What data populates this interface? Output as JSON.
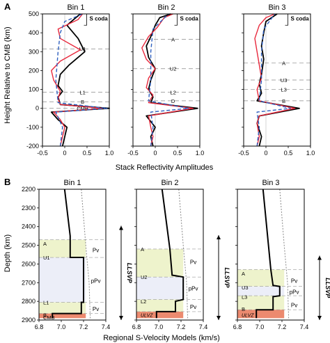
{
  "figure": {
    "panel_a": {
      "letter": "A",
      "ylabel": "Height Relative to CMB (km)",
      "xlabel": "Stack Reflectivity Amplitudes",
      "y_ticks": [
        "500",
        "400",
        "300",
        "200",
        "100",
        "0",
        "-100",
        "-200"
      ],
      "x_ticks": [
        "-0.5",
        "0",
        "0.5",
        "1.0"
      ],
      "bins": [
        {
          "title": "Bin 1",
          "coda": "S coda",
          "labels": [
            {
              "text": "U1",
              "y": 315
            },
            {
              "text": "L1",
              "y": 85
            },
            {
              "text": "B",
              "y": 35
            },
            {
              "text": "CMB",
              "y": 0
            }
          ]
        },
        {
          "title": "Bin 2",
          "coda": "S coda",
          "labels": [
            {
              "text": "A",
              "y": 365
            },
            {
              "text": "U2",
              "y": 210
            },
            {
              "text": "L2",
              "y": 85
            },
            {
              "text": "D",
              "y": 40
            }
          ]
        },
        {
          "title": "Bin 3",
          "coda": "S coda",
          "labels": [
            {
              "text": "A",
              "y": 240
            },
            {
              "text": "U3",
              "y": 150
            },
            {
              "text": "L3",
              "y": 100
            },
            {
              "text": "B",
              "y": 40
            }
          ]
        }
      ]
    },
    "panel_b": {
      "letter": "B",
      "ylabel": "Depth (km)",
      "xlabel": "Regional S-Velocity Models (km/s)",
      "y_ticks": [
        "2200",
        "2300",
        "2400",
        "2500",
        "2600",
        "2700",
        "2800",
        "2900"
      ],
      "x_ticks": [
        "6.8",
        "7.0",
        "7.2",
        "7.4"
      ],
      "llsvp": "LLSVP",
      "bins": [
        {
          "title": "Bin 1",
          "labels": [
            {
              "text": "A",
              "depth": 2490
            },
            {
              "text": "U1",
              "depth": 2565
            },
            {
              "text": "L1",
              "depth": 2805
            },
            {
              "text": "CMB",
              "depth": 2885
            },
            {
              "text": "B",
              "depth": 2873
            }
          ],
          "phases": [
            {
              "text": "Pv",
              "depth": 2525
            },
            {
              "text": "pPv",
              "depth": 2690
            },
            {
              "text": "Pv",
              "depth": 2840
            }
          ]
        },
        {
          "title": "Bin 2",
          "labels": [
            {
              "text": "A",
              "depth": 2520
            },
            {
              "text": "U2",
              "depth": 2670
            },
            {
              "text": "L2",
              "depth": 2800
            },
            {
              "text": "ULVZ",
              "depth": 2873
            }
          ],
          "phases": [
            {
              "text": "Pv",
              "depth": 2590
            },
            {
              "text": "pPv",
              "depth": 2730
            },
            {
              "text": "Pv",
              "depth": 2830
            }
          ]
        },
        {
          "title": "Bin 3",
          "labels": [
            {
              "text": "A",
              "depth": 2650
            },
            {
              "text": "U3",
              "depth": 2725
            },
            {
              "text": "L3",
              "depth": 2775
            },
            {
              "text": "B",
              "depth": 2840
            },
            {
              "text": "ULVZ",
              "depth": 2873
            }
          ],
          "phases": [
            {
              "text": "Pv",
              "depth": 2690
            },
            {
              "text": "pPv",
              "depth": 2750
            },
            {
              "text": "Pv",
              "depth": 2820
            }
          ]
        }
      ]
    }
  },
  "chart_data": [
    {
      "type": "line",
      "panel": "A",
      "title": "Bin 1",
      "xlabel": "Stack Reflectivity Amplitudes",
      "ylabel": "Height Relative to CMB (km)",
      "xlim": [
        -0.5,
        1.0
      ],
      "ylim": [
        -200,
        500
      ],
      "grid": false,
      "series": [
        {
          "color": "#000000",
          "dash": "solid",
          "points": [
            [
              -0.05,
              -200
            ],
            [
              0.0,
              -150
            ],
            [
              0.05,
              -100
            ],
            [
              -0.15,
              -60
            ],
            [
              -0.3,
              -20
            ],
            [
              1.0,
              0
            ],
            [
              -0.1,
              20
            ],
            [
              -0.15,
              60
            ],
            [
              -0.05,
              90
            ],
            [
              -0.15,
              120
            ],
            [
              -0.1,
              180
            ],
            [
              0.1,
              230
            ],
            [
              0.45,
              300
            ],
            [
              0.3,
              370
            ],
            [
              0.05,
              440
            ],
            [
              0.2,
              470
            ],
            [
              0.35,
              500
            ]
          ]
        },
        {
          "color": "#e8283c",
          "dash": "solid",
          "points": [
            [
              -0.1,
              -200
            ],
            [
              -0.05,
              -150
            ],
            [
              0.0,
              -100
            ],
            [
              -0.1,
              -60
            ],
            [
              -0.25,
              -20
            ],
            [
              0.85,
              0
            ],
            [
              -0.1,
              20
            ],
            [
              -0.15,
              50
            ],
            [
              -0.1,
              90
            ],
            [
              -0.25,
              150
            ],
            [
              -0.3,
              200
            ],
            [
              -0.1,
              250
            ],
            [
              0.35,
              310
            ],
            [
              -0.1,
              370
            ],
            [
              -0.15,
              420
            ],
            [
              0.3,
              470
            ],
            [
              0.4,
              500
            ]
          ]
        },
        {
          "color": "#2e5fbf",
          "dash": "dashed",
          "points": [
            [
              -0.1,
              -200
            ],
            [
              -0.05,
              -100
            ],
            [
              -0.2,
              -20
            ],
            [
              0.95,
              0
            ],
            [
              -0.15,
              30
            ],
            [
              -0.2,
              150
            ],
            [
              -0.15,
              300
            ],
            [
              -0.1,
              400
            ],
            [
              0.0,
              460
            ],
            [
              0.4,
              500
            ]
          ]
        }
      ]
    },
    {
      "type": "line",
      "panel": "A",
      "title": "Bin 2",
      "xlim": [
        -0.5,
        1.0
      ],
      "ylim": [
        -200,
        500
      ],
      "grid": false,
      "series": [
        {
          "color": "#000000",
          "dash": "solid",
          "points": [
            [
              -0.05,
              -200
            ],
            [
              -0.1,
              -150
            ],
            [
              0.0,
              -100
            ],
            [
              -0.2,
              -40
            ],
            [
              0.95,
              0
            ],
            [
              -0.1,
              30
            ],
            [
              -0.05,
              60
            ],
            [
              -0.15,
              100
            ],
            [
              -0.1,
              150
            ],
            [
              0.0,
              210
            ],
            [
              -0.15,
              270
            ],
            [
              -0.2,
              330
            ],
            [
              -0.1,
              380
            ],
            [
              0.0,
              440
            ],
            [
              0.1,
              480
            ],
            [
              0.35,
              500
            ]
          ]
        },
        {
          "color": "#e8283c",
          "dash": "solid",
          "points": [
            [
              -0.1,
              -200
            ],
            [
              -0.05,
              -150
            ],
            [
              -0.1,
              -100
            ],
            [
              -0.15,
              -40
            ],
            [
              0.85,
              0
            ],
            [
              -0.15,
              30
            ],
            [
              -0.05,
              70
            ],
            [
              -0.2,
              110
            ],
            [
              -0.15,
              160
            ],
            [
              0.0,
              210
            ],
            [
              -0.2,
              260
            ],
            [
              -0.3,
              320
            ],
            [
              -0.15,
              380
            ],
            [
              0.05,
              430
            ],
            [
              0.2,
              480
            ],
            [
              0.4,
              500
            ]
          ]
        },
        {
          "color": "#2e5fbf",
          "dash": "dashed",
          "points": [
            [
              -0.1,
              -200
            ],
            [
              -0.05,
              -100
            ],
            [
              -0.1,
              -20
            ],
            [
              0.75,
              0
            ],
            [
              -0.15,
              40
            ],
            [
              -0.1,
              150
            ],
            [
              -0.1,
              300
            ],
            [
              -0.05,
              420
            ],
            [
              0.3,
              500
            ]
          ]
        }
      ]
    },
    {
      "type": "line",
      "panel": "A",
      "title": "Bin 3",
      "xlim": [
        -0.5,
        1.0
      ],
      "ylim": [
        -200,
        500
      ],
      "grid": false,
      "series": [
        {
          "color": "#000000",
          "dash": "solid",
          "points": [
            [
              -0.15,
              -200
            ],
            [
              -0.1,
              -150
            ],
            [
              -0.2,
              -80
            ],
            [
              -0.15,
              -40
            ],
            [
              0.75,
              0
            ],
            [
              -0.2,
              40
            ],
            [
              -0.1,
              80
            ],
            [
              -0.15,
              130
            ],
            [
              -0.1,
              180
            ],
            [
              -0.05,
              260
            ],
            [
              -0.1,
              330
            ],
            [
              -0.05,
              400
            ],
            [
              0.0,
              460
            ],
            [
              0.25,
              500
            ]
          ]
        },
        {
          "color": "#e8283c",
          "dash": "solid",
          "points": [
            [
              -0.2,
              -200
            ],
            [
              -0.15,
              -150
            ],
            [
              -0.2,
              -80
            ],
            [
              -0.15,
              -40
            ],
            [
              0.65,
              0
            ],
            [
              -0.15,
              40
            ],
            [
              -0.2,
              100
            ],
            [
              -0.1,
              160
            ],
            [
              -0.15,
              230
            ],
            [
              -0.2,
              300
            ],
            [
              -0.25,
              370
            ],
            [
              -0.15,
              440
            ],
            [
              0.0,
              480
            ],
            [
              0.2,
              500
            ]
          ]
        },
        {
          "color": "#2e5fbf",
          "dash": "dashed",
          "points": [
            [
              -0.2,
              -200
            ],
            [
              -0.15,
              -100
            ],
            [
              -0.2,
              -20
            ],
            [
              0.55,
              0
            ],
            [
              -0.15,
              40
            ],
            [
              -0.1,
              150
            ],
            [
              -0.1,
              300
            ],
            [
              -0.05,
              420
            ],
            [
              0.2,
              500
            ]
          ]
        }
      ]
    },
    {
      "type": "line",
      "panel": "B",
      "title": "Bin 1",
      "xlabel": "Regional S-Velocity Models (km/s)",
      "ylabel": "Depth (km)",
      "xlim": [
        6.8,
        7.4
      ],
      "ylim": [
        2200,
        2900
      ],
      "grid": false,
      "model": [
        [
          7.03,
          2200
        ],
        [
          7.08,
          2450
        ],
        [
          7.08,
          2565
        ],
        [
          7.2,
          2565
        ],
        [
          7.2,
          2805
        ],
        [
          7.18,
          2805
        ],
        [
          7.18,
          2865
        ],
        [
          6.92,
          2865
        ],
        [
          6.92,
          2890
        ]
      ],
      "reference": [
        [
          7.18,
          2200
        ],
        [
          7.22,
          2500
        ],
        [
          7.25,
          2700
        ],
        [
          7.26,
          2890
        ]
      ],
      "layers": [
        {
          "from": 2470,
          "to": 2565,
          "color": "#eef3cc"
        },
        {
          "from": 2565,
          "to": 2805,
          "color": "#eceef8"
        },
        {
          "from": 2805,
          "to": 2865,
          "color": "#eef3cc"
        },
        {
          "from": 2865,
          "to": 2890,
          "color": "#ec8a6f"
        }
      ]
    },
    {
      "type": "line",
      "panel": "B",
      "title": "Bin 2",
      "xlim": [
        6.8,
        7.4
      ],
      "ylim": [
        2200,
        2900
      ],
      "grid": false,
      "model": [
        [
          7.03,
          2200
        ],
        [
          7.1,
          2520
        ],
        [
          7.12,
          2660
        ],
        [
          7.22,
          2670
        ],
        [
          7.22,
          2790
        ],
        [
          7.15,
          2800
        ],
        [
          7.15,
          2855
        ],
        [
          6.98,
          2855
        ],
        [
          6.98,
          2890
        ]
      ],
      "reference": [
        [
          7.18,
          2200
        ],
        [
          7.22,
          2500
        ],
        [
          7.25,
          2700
        ],
        [
          7.26,
          2890
        ]
      ],
      "layers": [
        {
          "from": 2520,
          "to": 2670,
          "color": "#eef3cc"
        },
        {
          "from": 2670,
          "to": 2790,
          "color": "#eceef8"
        },
        {
          "from": 2790,
          "to": 2855,
          "color": "#eef3cc"
        },
        {
          "from": 2855,
          "to": 2890,
          "color": "#ec8a6f"
        }
      ]
    },
    {
      "type": "line",
      "panel": "B",
      "title": "Bin 3",
      "xlim": [
        6.8,
        7.4
      ],
      "ylim": [
        2200,
        2900
      ],
      "grid": false,
      "model": [
        [
          7.03,
          2200
        ],
        [
          7.1,
          2630
        ],
        [
          7.12,
          2715
        ],
        [
          7.18,
          2720
        ],
        [
          7.18,
          2770
        ],
        [
          7.12,
          2775
        ],
        [
          7.12,
          2845
        ],
        [
          6.97,
          2845
        ],
        [
          6.97,
          2890
        ]
      ],
      "reference": [
        [
          7.18,
          2200
        ],
        [
          7.22,
          2500
        ],
        [
          7.25,
          2700
        ],
        [
          7.26,
          2890
        ]
      ],
      "layers": [
        {
          "from": 2630,
          "to": 2720,
          "color": "#eef3cc"
        },
        {
          "from": 2720,
          "to": 2770,
          "color": "#eceef8"
        },
        {
          "from": 2770,
          "to": 2845,
          "color": "#eef3cc"
        },
        {
          "from": 2845,
          "to": 2890,
          "color": "#ec8a6f"
        }
      ]
    }
  ]
}
